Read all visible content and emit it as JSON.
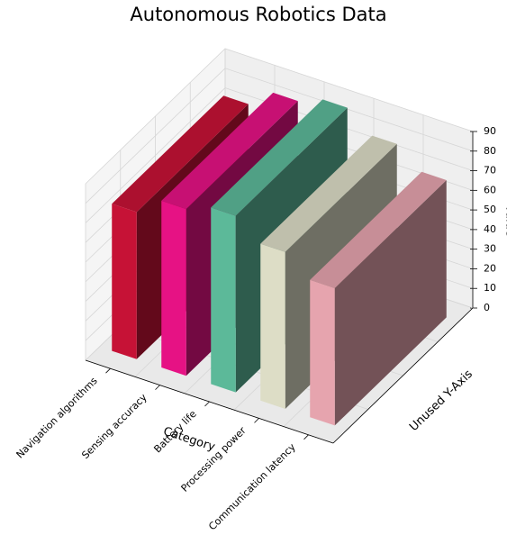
{
  "chart_data": {
    "type": "bar3d",
    "title": "Autonomous Robotics Data",
    "xlabel": "Category",
    "ylabel": "Unused Y-Axis",
    "zlabel": "Value",
    "categories": [
      "Navigation algorithms",
      "Sensing accuracy",
      "Battery life",
      "Processing power",
      "Communication latency"
    ],
    "values": [
      75,
      85,
      90,
      80,
      70
    ],
    "colors": [
      "#dc143c",
      "#ff1493",
      "#66cdaa",
      "#f5f5dc",
      "#ffb6c1"
    ],
    "zlim": [
      0,
      90
    ],
    "zticks": [
      0,
      10,
      20,
      30,
      40,
      50,
      60,
      70,
      80,
      90
    ],
    "grid": true
  }
}
